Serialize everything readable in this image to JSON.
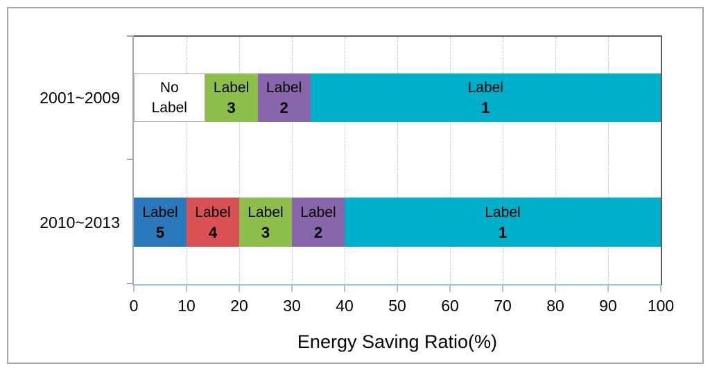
{
  "chart_data": {
    "type": "bar",
    "orientation": "horizontal",
    "stacked": true,
    "title": "",
    "xlabel": "Energy Saving Ratio(%)",
    "xlim": [
      0,
      100
    ],
    "x_ticks": [
      0,
      10,
      20,
      30,
      40,
      50,
      60,
      70,
      80,
      90,
      100
    ],
    "grid": "vertical-dashed",
    "legend": "none",
    "categories": [
      "2001~2009",
      "2010~2013"
    ],
    "rows": [
      {
        "category": "2001~2009",
        "segments": [
          {
            "name": "No Label",
            "label_lines": [
              "No",
              "Label"
            ],
            "value": 13.5,
            "color": "#FFFFFF",
            "bold_line2": false
          },
          {
            "name": "Label 3",
            "label_lines": [
              "Label",
              "3"
            ],
            "value": 10,
            "color": "#8DBE4B",
            "bold_line2": true
          },
          {
            "name": "Label 2",
            "label_lines": [
              "Label",
              "2"
            ],
            "value": 10,
            "color": "#8966AC",
            "bold_line2": true
          },
          {
            "name": "Label 1",
            "label_lines": [
              "Label",
              "1"
            ],
            "value": 66.5,
            "color": "#00AEC9",
            "bold_line2": true
          }
        ]
      },
      {
        "category": "2010~2013",
        "segments": [
          {
            "name": "Label 5",
            "label_lines": [
              "Label",
              "5"
            ],
            "value": 10,
            "color": "#2B79BD",
            "bold_line2": true
          },
          {
            "name": "Label 4",
            "label_lines": [
              "Label",
              "4"
            ],
            "value": 10,
            "color": "#D95152",
            "bold_line2": true
          },
          {
            "name": "Label 3",
            "label_lines": [
              "Label",
              "3"
            ],
            "value": 10,
            "color": "#8DBE4B",
            "bold_line2": true
          },
          {
            "name": "Label 2",
            "label_lines": [
              "Label",
              "2"
            ],
            "value": 10,
            "color": "#8966AC",
            "bold_line2": true
          },
          {
            "name": "Label 1",
            "label_lines": [
              "Label",
              "1"
            ],
            "value": 60,
            "color": "#00AEC9",
            "bold_line2": true
          }
        ]
      }
    ],
    "colors": {
      "axis_line": "#9DC3E6",
      "plot_border": "#595959",
      "value_axis_line": "#A6A6A6",
      "gridline": "#C9C9C9",
      "figure_border": "#A6A6A6",
      "label_text": "#000000"
    }
  }
}
